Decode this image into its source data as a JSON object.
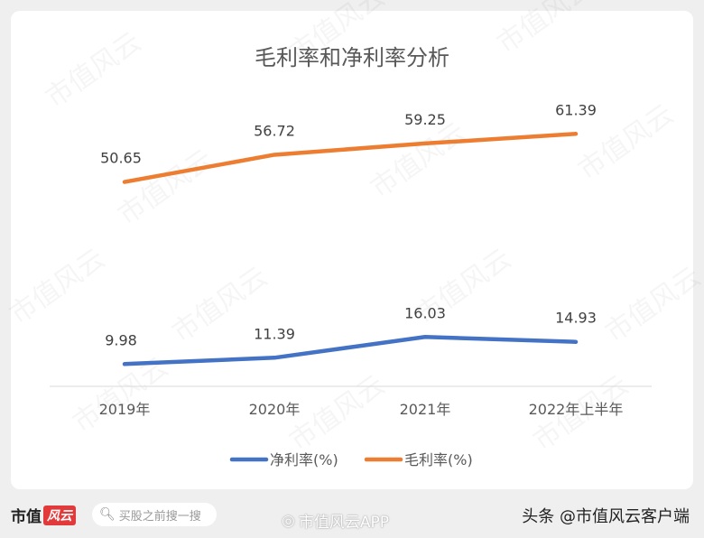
{
  "chart_data": {
    "type": "line",
    "title": "毛利率和净利率分析",
    "categories": [
      "2019年",
      "2020年",
      "2021年",
      "2022年上半年"
    ],
    "series": [
      {
        "name": "净利率(%)",
        "values": [
          9.98,
          11.39,
          16.03,
          14.93
        ],
        "color": "#4472c4"
      },
      {
        "name": "毛利率(%)",
        "values": [
          50.65,
          56.72,
          59.25,
          61.39
        ],
        "color": "#ed7d31"
      }
    ],
    "ylim": [
      5,
      70
    ],
    "grid": false,
    "legend": "bottom",
    "data_labels": true
  },
  "watermark": "市值风云",
  "footer": {
    "logo_text": "市值",
    "logo_badge": "风云",
    "search_placeholder": "买股之前搜一搜",
    "weibo_text": "市值风云APP",
    "toutiao_text": "头条 @市值风云客户端"
  }
}
